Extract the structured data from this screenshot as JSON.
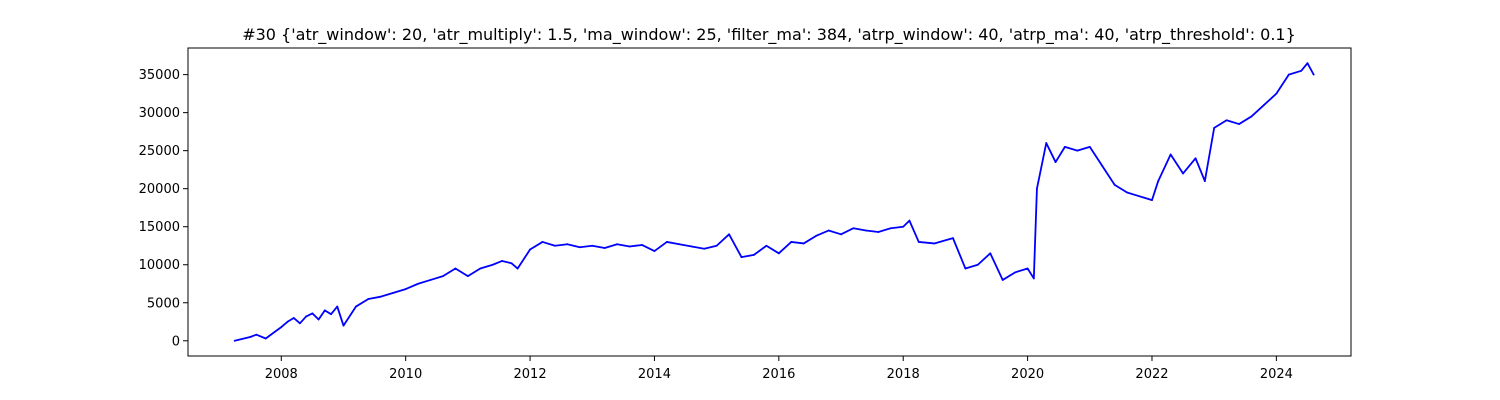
{
  "chart_data": {
    "type": "line",
    "title": "#30 {'atr_window': 20, 'atr_multiply': 1.5, 'ma_window': 25, 'filter_ma': 384, 'atrp_window': 40, 'atrp_ma': 40, 'atrp_threshold': 0.1}",
    "xlabel": "",
    "ylabel": "",
    "xlim": [
      2006.5,
      2025.2
    ],
    "ylim": [
      -2000,
      38500
    ],
    "grid": false,
    "x_ticks": [
      2008,
      2010,
      2012,
      2014,
      2016,
      2018,
      2020,
      2022,
      2024
    ],
    "x_tick_labels": [
      "2008",
      "2010",
      "2012",
      "2014",
      "2016",
      "2018",
      "2020",
      "2022",
      "2024"
    ],
    "y_ticks": [
      0,
      5000,
      10000,
      15000,
      20000,
      25000,
      30000,
      35000
    ],
    "y_tick_labels": [
      "0",
      "5000",
      "10000",
      "15000",
      "20000",
      "25000",
      "30000",
      "35000"
    ],
    "colors": {
      "line": "#0000ff",
      "axis": "#000000",
      "background": "#ffffff"
    },
    "series": [
      {
        "x": [
          2007.25,
          2007.5,
          2007.6,
          2007.75,
          2007.9,
          2008.0,
          2008.1,
          2008.2,
          2008.3,
          2008.4,
          2008.5,
          2008.6,
          2008.7,
          2008.8,
          2008.9,
          2009.0,
          2009.2,
          2009.4,
          2009.6,
          2009.8,
          2010.0,
          2010.2,
          2010.4,
          2010.6,
          2010.8,
          2011.0,
          2011.2,
          2011.4,
          2011.55,
          2011.7,
          2011.8,
          2012.0,
          2012.2,
          2012.4,
          2012.6,
          2012.8,
          2013.0,
          2013.2,
          2013.4,
          2013.6,
          2013.8,
          2014.0,
          2014.2,
          2014.4,
          2014.6,
          2014.8,
          2015.0,
          2015.2,
          2015.4,
          2015.6,
          2015.8,
          2016.0,
          2016.2,
          2016.4,
          2016.6,
          2016.8,
          2017.0,
          2017.2,
          2017.4,
          2017.6,
          2017.8,
          2018.0,
          2018.1,
          2018.25,
          2018.5,
          2018.8,
          2019.0,
          2019.2,
          2019.4,
          2019.6,
          2019.8,
          2020.0,
          2020.1,
          2020.15,
          2020.3,
          2020.45,
          2020.6,
          2020.8,
          2021.0,
          2021.2,
          2021.4,
          2021.6,
          2021.8,
          2022.0,
          2022.1,
          2022.3,
          2022.5,
          2022.7,
          2022.85,
          2023.0,
          2023.2,
          2023.4,
          2023.6,
          2023.8,
          2024.0,
          2024.2,
          2024.4,
          2024.5,
          2024.6
        ],
        "y": [
          0,
          500,
          800,
          300,
          1200,
          1800,
          2500,
          3000,
          2300,
          3200,
          3600,
          2800,
          4000,
          3500,
          4500,
          2000,
          4500,
          5500,
          5800,
          6300,
          6800,
          7500,
          8000,
          8500,
          9500,
          8500,
          9500,
          10000,
          10500,
          10200,
          9500,
          12000,
          13000,
          12500,
          12700,
          12300,
          12500,
          12200,
          12700,
          12400,
          12600,
          11800,
          13000,
          12700,
          12400,
          12100,
          12500,
          14000,
          11000,
          11300,
          12500,
          11500,
          13000,
          12800,
          13800,
          14500,
          14000,
          14800,
          14500,
          14300,
          14800,
          15000,
          15800,
          13000,
          12800,
          13500,
          9500,
          10000,
          11500,
          8000,
          9000,
          9500,
          8200,
          20000,
          26000,
          23500,
          25500,
          25000,
          25500,
          23000,
          20500,
          19500,
          19000,
          18500,
          21000,
          24500,
          22000,
          24000,
          21000,
          28000,
          29000,
          28500,
          29500,
          31000,
          32500,
          35000,
          35500,
          36500,
          35000
        ]
      }
    ]
  }
}
